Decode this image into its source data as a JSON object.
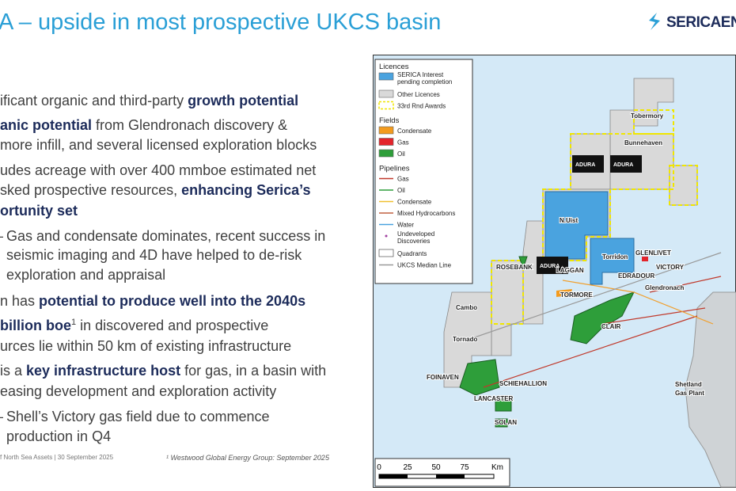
{
  "title": "A – upside in most prospective UKCS basin",
  "logo": "SERICAENE",
  "body": [
    [
      {
        "t": "ificant organic and third-party "
      },
      {
        "t": "growth potential",
        "b": true
      }
    ],
    [
      {
        "t": "anic potential",
        "b": true
      },
      {
        "t": " from Glendronach discovery &"
      }
    ],
    [
      {
        "t": "more infill, and several licensed exploration blocks"
      }
    ],
    [
      {
        "t": "udes acreage with over 400 mmboe estimated net"
      }
    ],
    [
      {
        "t": "sked prospective resources, "
      },
      {
        "t": "enhancing Serica’s",
        "b": true
      }
    ],
    [
      {
        "t": "ortunity set",
        "b": true
      }
    ],
    [
      {
        "t": "Gas and condensate dominates, recent success in"
      }
    ],
    [
      {
        "t": "seismic imaging and 4D have helped to de-risk"
      }
    ],
    [
      {
        "t": "exploration and appraisal"
      }
    ],
    [
      {
        "t": "n has "
      },
      {
        "t": "potential to produce well into the 2040s",
        "b": true
      }
    ],
    [
      {
        "t": "billion boe",
        "b": true
      },
      {
        "t": "1",
        "sup": true
      },
      {
        "t": " in discovered and prospective"
      }
    ],
    [
      {
        "t": "urces lie within 50 km of existing infrastructure"
      }
    ],
    [
      {
        "t": " is a "
      },
      {
        "t": "key infrastructure host",
        "b": true
      },
      {
        "t": " for gas, in a basin with"
      }
    ],
    [
      {
        "t": "easing development and exploration activity"
      }
    ],
    [
      {
        "t": "Shell’s Victory gas field due to commence"
      }
    ],
    [
      {
        "t": "production in Q4"
      }
    ]
  ],
  "footer": "f North Sea Assets | 30 September 2025",
  "footnote": "¹ Westwood Global Energy Group: September 2025",
  "legend": [
    {
      "title": "Licences",
      "items": [
        "SERICA Interest pending completion",
        "Other Licences",
        "33rd Rnd Awards"
      ]
    },
    {
      "title": "Fields",
      "items": [
        "Condensate",
        "Gas",
        "Oil"
      ]
    },
    {
      "title": "Pipelines",
      "items": [
        "Gas",
        "Oil",
        "Condensate",
        "Mixed Hydrocarbons",
        "Water",
        "Undeveloped Discoveries",
        "Quadrants",
        "UKCS Median Line"
      ]
    }
  ],
  "map_labels": [
    "Tobermory",
    "Bunnehaven",
    "N.Uist",
    "Torridon",
    "GLENLIVET",
    "VICTORY",
    "ROSEBANK",
    "LAGGAN",
    "EDRADOUR",
    "Glendronach",
    "TORMORE",
    "Cambo",
    "Tornado",
    "CLAIR",
    "FOINAVEN",
    "SCHIEHALLION",
    "LANCASTER",
    "SOLAN",
    "Shetland",
    "Gas Plant",
    "ADURA",
    "ADURA",
    "ADURA"
  ],
  "scale": [
    "0",
    "25",
    "50",
    "75",
    "Km"
  ]
}
